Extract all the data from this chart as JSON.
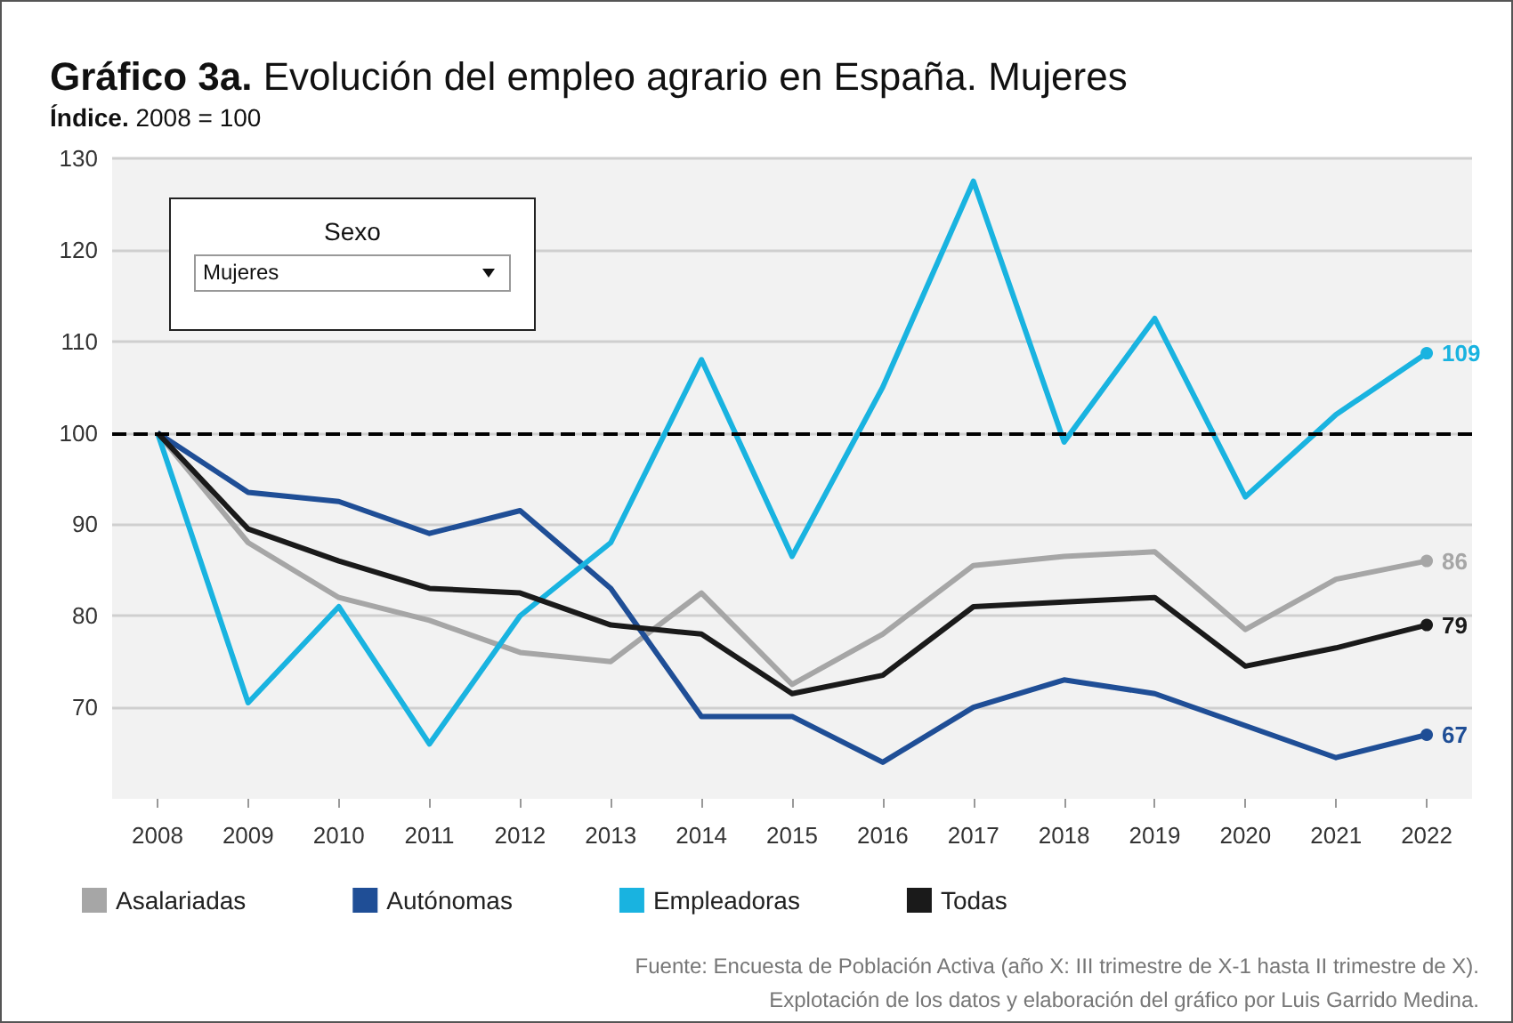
{
  "chart_data": {
    "type": "line",
    "title": "Gráfico 3a. Evolución del empleo agrario en España. Mujeres",
    "subtitle": "Índice. 2008 = 100",
    "categories": [
      "2008",
      "2009",
      "2010",
      "2011",
      "2012",
      "2013",
      "2014",
      "2015",
      "2016",
      "2017",
      "2018",
      "2019",
      "2020",
      "2021",
      "2022"
    ],
    "series": [
      {
        "name": "Asalariadas",
        "color": "#a6a6a6",
        "values": [
          100,
          88,
          82,
          79.5,
          76,
          75,
          82.5,
          72.5,
          78,
          85.5,
          86.5,
          87,
          78.5,
          84,
          86
        ],
        "value_labels": [
          null,
          null,
          null,
          null,
          null,
          null,
          null,
          null,
          null,
          null,
          null,
          null,
          null,
          null,
          "86"
        ]
      },
      {
        "name": "Autónomas",
        "color": "#1f4e96",
        "values": [
          100,
          93.5,
          92.5,
          89,
          91.5,
          83,
          69,
          69,
          64,
          70,
          73,
          71.5,
          68,
          64.5,
          67
        ],
        "value_labels": [
          null,
          null,
          null,
          null,
          null,
          null,
          null,
          null,
          null,
          null,
          null,
          null,
          null,
          null,
          "67"
        ]
      },
      {
        "name": "Empleadoras",
        "color": "#19b3e0",
        "values": [
          100,
          70.5,
          81,
          66,
          80,
          88,
          108,
          86.5,
          105,
          127.5,
          99,
          112.5,
          93,
          102,
          108.7
        ],
        "value_labels": [
          null,
          null,
          null,
          null,
          null,
          null,
          null,
          null,
          null,
          null,
          null,
          null,
          null,
          null,
          "109"
        ]
      },
      {
        "name": "Todas",
        "color": "#1a1a1a",
        "values": [
          100,
          89.5,
          86,
          83,
          82.5,
          79,
          78,
          71.5,
          73.5,
          81,
          81.5,
          82,
          74.5,
          76.5,
          79
        ],
        "value_labels": [
          null,
          null,
          null,
          null,
          null,
          null,
          null,
          null,
          null,
          null,
          null,
          null,
          null,
          null,
          "79"
        ]
      }
    ],
    "ylim": [
      60,
      130
    ],
    "yticks": [
      70,
      80,
      90,
      100,
      110,
      120,
      130
    ],
    "grid": "y",
    "legend": "bottom",
    "marker": "none",
    "line_style": "solid",
    "ref_lines": [
      {
        "axis": "y",
        "value": 100,
        "color": "#000000",
        "line_style": "dashed"
      }
    ],
    "annotations": [
      "Sexo",
      "Mujeres",
      "Fuente: Encuesta de Población Activa (año X: III trimestre de X-1 hasta II trimestre de X).",
      "Explotación de los datos y elaboración del gráfico por Luis Garrido Medina."
    ]
  }
}
